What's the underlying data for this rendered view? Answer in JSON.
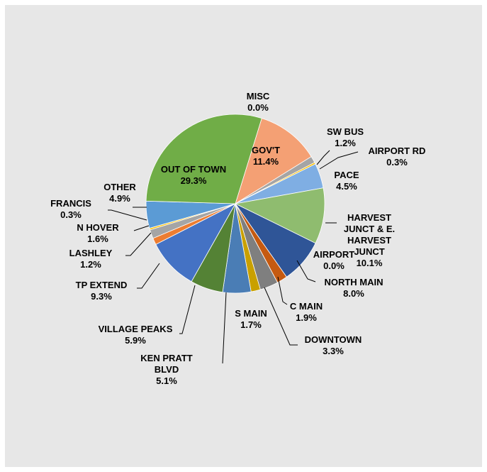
{
  "chart_data": {
    "type": "pie",
    "title": "",
    "slices": [
      {
        "name": "MISC",
        "value": 0.0,
        "label": "0.0%",
        "color": "#ed7d31"
      },
      {
        "name": "GOV'T",
        "value": 11.4,
        "label": "11.4%",
        "color": "#f4a074"
      },
      {
        "name": "SW BUS",
        "value": 1.2,
        "label": "1.2%",
        "color": "#a5a5a5"
      },
      {
        "name": "AIRPORT RD",
        "value": 0.3,
        "label": "0.3%",
        "color": "#ffc000"
      },
      {
        "name": "PACE",
        "value": 4.5,
        "label": "4.5%",
        "color": "#7faee3"
      },
      {
        "name": "HARVEST JUNCT & E. HARVEST JUNCT",
        "value": 10.1,
        "label": "10.1%",
        "color": "#8fbc6f"
      },
      {
        "name": "AIRPORT",
        "value": 0.0,
        "label": "0.0%",
        "color": "#264478"
      },
      {
        "name": "NORTH MAIN",
        "value": 8.0,
        "label": "8.0%",
        "color": "#2f5597"
      },
      {
        "name": "C MAIN",
        "value": 1.9,
        "label": "1.9%",
        "color": "#c55a11"
      },
      {
        "name": "DOWNTOWN",
        "value": 3.3,
        "label": "3.3%",
        "color": "#7f7f7f"
      },
      {
        "name": "S MAIN",
        "value": 1.7,
        "label": "1.7%",
        "color": "#c9a000"
      },
      {
        "name": "KEN PRATT BLVD",
        "value": 5.1,
        "label": "5.1%",
        "color": "#4a7db5"
      },
      {
        "name": "VILLAGE PEAKS",
        "value": 5.9,
        "label": "5.9%",
        "color": "#548235"
      },
      {
        "name": "TP EXTEND",
        "value": 9.3,
        "label": "9.3%",
        "color": "#4472c4"
      },
      {
        "name": "LASHLEY",
        "value": 1.2,
        "label": "1.2%",
        "color": "#ed7d31"
      },
      {
        "name": "N HOVER",
        "value": 1.6,
        "label": "1.6%",
        "color": "#a5a5a5"
      },
      {
        "name": "FRANCIS",
        "value": 0.3,
        "label": "0.3%",
        "color": "#ffc000"
      },
      {
        "name": "OTHER",
        "value": 4.9,
        "label": "4.9%",
        "color": "#5b9bd5"
      },
      {
        "name": "OUT OF TOWN",
        "value": 29.3,
        "label": "29.3%",
        "color": "#70ad47"
      }
    ],
    "legend": "none",
    "data_labels": "category name and percentage"
  }
}
